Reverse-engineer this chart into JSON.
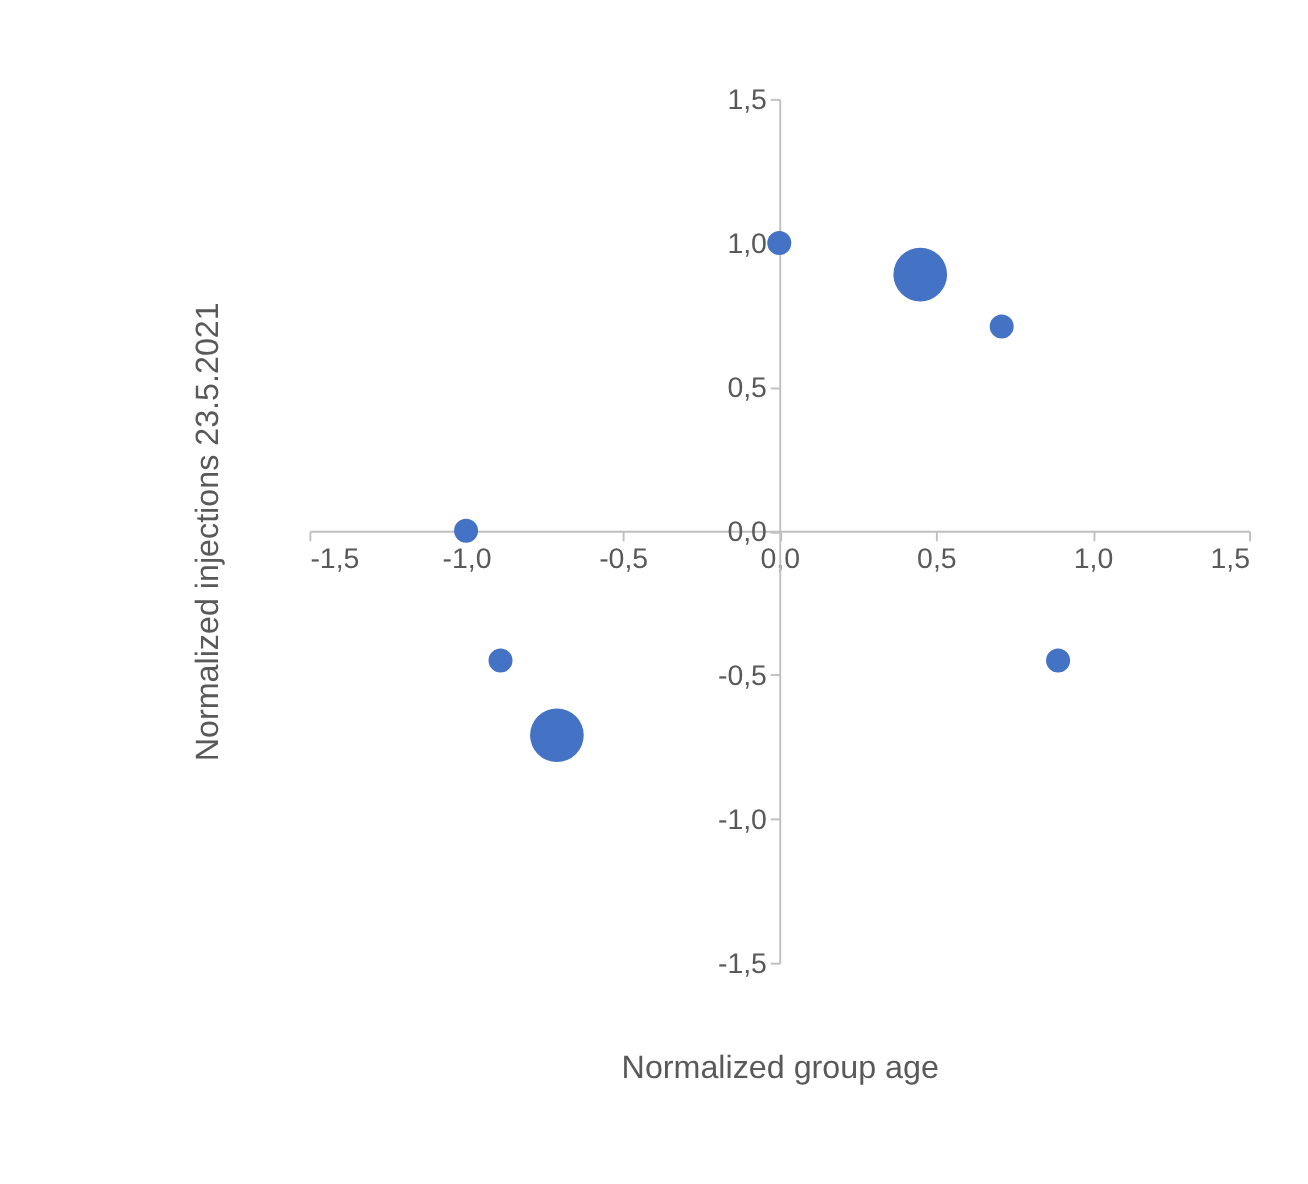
{
  "chart_data": {
    "type": "bubble",
    "xlabel": "Normalized group age",
    "ylabel": "Normalized injections 23.5.2021",
    "x": [
      0,
      0.45,
      0.71,
      -1,
      -0.89,
      -0.71,
      0.89
    ],
    "values": [
      1,
      0.89,
      0.71,
      0,
      -0.45,
      -0.71,
      -0.45
    ],
    "sizes": [
      0.2,
      1,
      0.2,
      0.2,
      0.2,
      1,
      0.2
    ],
    "color": "#4472c4",
    "xlim": [
      -1.5,
      1.5
    ],
    "ylim": [
      -1.5,
      1.5
    ],
    "xticks": [
      {
        "value": -1.5,
        "label": "-1,5"
      },
      {
        "value": -1,
        "label": "-1,0"
      },
      {
        "value": -0.5,
        "label": "-0,5"
      },
      {
        "value": 0,
        "label": "0,0"
      },
      {
        "value": 0.5,
        "label": "0,5"
      },
      {
        "value": 1,
        "label": "1,0"
      },
      {
        "value": 1.5,
        "label": "1,5"
      }
    ],
    "yticks": [
      {
        "value": -1.5,
        "label": "-1,5"
      },
      {
        "value": -1,
        "label": "-1,0"
      },
      {
        "value": -0.5,
        "label": "-0,5"
      },
      {
        "value": 0,
        "label": "0,0"
      },
      {
        "value": 0.5,
        "label": "0,5"
      },
      {
        "value": 1,
        "label": "1,0"
      },
      {
        "value": 1.5,
        "label": "1,5"
      }
    ],
    "grid": false,
    "legend": false
  }
}
